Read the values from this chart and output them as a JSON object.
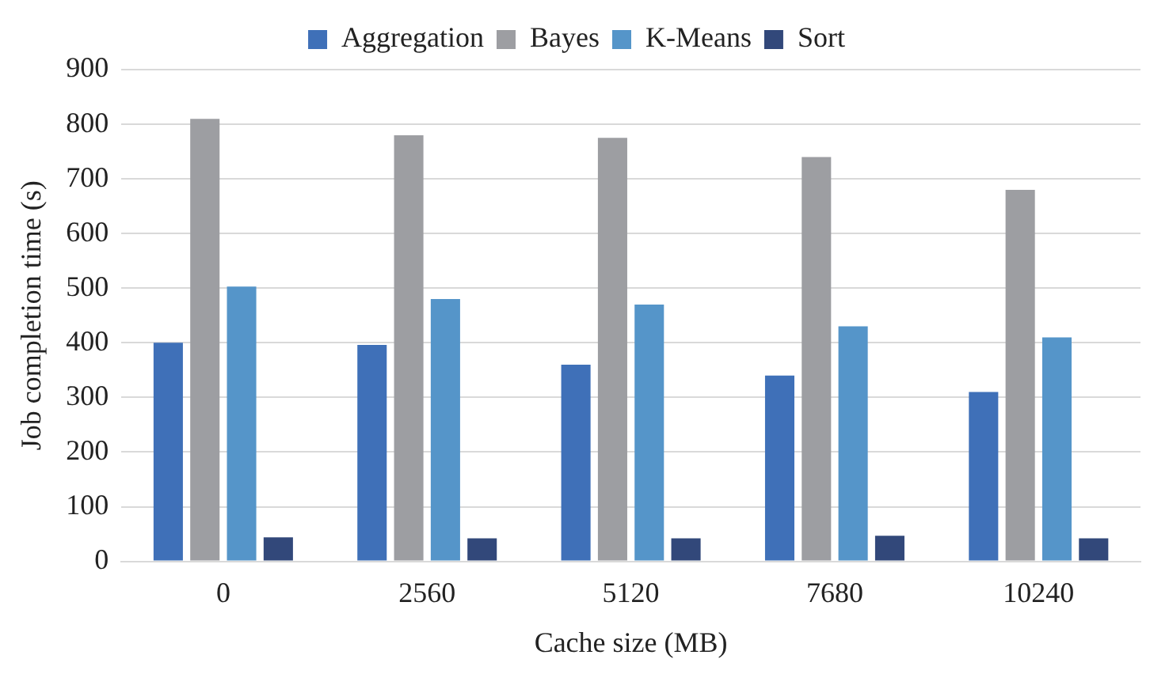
{
  "chart_data": {
    "type": "bar",
    "xlabel": "Cache size (MB)",
    "ylabel": "Job completion time (s)",
    "categories": [
      "0",
      "2560",
      "5120",
      "7680",
      "10240"
    ],
    "series": [
      {
        "name": "Aggregation",
        "color": "#3f70b8",
        "values": [
          400,
          396,
          360,
          340,
          310
        ]
      },
      {
        "name": "Bayes",
        "color": "#9d9ea2",
        "values": [
          810,
          780,
          775,
          740,
          680
        ]
      },
      {
        "name": "K-Means",
        "color": "#5595c9",
        "values": [
          503,
          480,
          470,
          430,
          410
        ]
      },
      {
        "name": "Sort",
        "color": "#32487a",
        "values": [
          44,
          42,
          42,
          47,
          42
        ]
      }
    ],
    "ylim": [
      0,
      900
    ],
    "yticks": [
      0,
      100,
      200,
      300,
      400,
      500,
      600,
      700,
      800,
      900
    ],
    "grid": "y",
    "legend": "top"
  }
}
